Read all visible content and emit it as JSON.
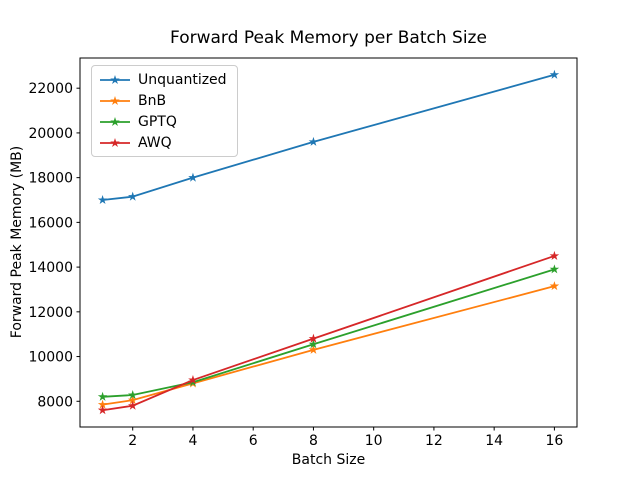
{
  "chart_data": {
    "type": "line",
    "title": "Forward Peak Memory per Batch Size",
    "xlabel": "Batch Size",
    "ylabel": "Forward Peak Memory (MB)",
    "x": [
      1,
      2,
      4,
      8,
      16
    ],
    "series": [
      {
        "name": "Unquantized",
        "color": "#1f77b4",
        "values": [
          17000,
          17150,
          18000,
          19600,
          22600
        ]
      },
      {
        "name": "BnB",
        "color": "#ff7f0e",
        "values": [
          7850,
          8050,
          8800,
          10300,
          13150
        ]
      },
      {
        "name": "GPTQ",
        "color": "#2ca02c",
        "values": [
          8200,
          8280,
          8850,
          10550,
          13900
        ]
      },
      {
        "name": "AWQ",
        "color": "#d62728",
        "values": [
          7600,
          7800,
          8950,
          10800,
          14500
        ]
      }
    ],
    "xticks": [
      2,
      4,
      6,
      8,
      10,
      12,
      14,
      16
    ],
    "yticks": [
      8000,
      10000,
      12000,
      14000,
      16000,
      18000,
      20000,
      22000
    ],
    "xlim": [
      0.25,
      16.75
    ],
    "ylim": [
      6850,
      23350
    ],
    "legend_position": "upper left",
    "marker": "star",
    "grid": false,
    "axis_color": "#000000",
    "background_color": "#ffffff"
  }
}
